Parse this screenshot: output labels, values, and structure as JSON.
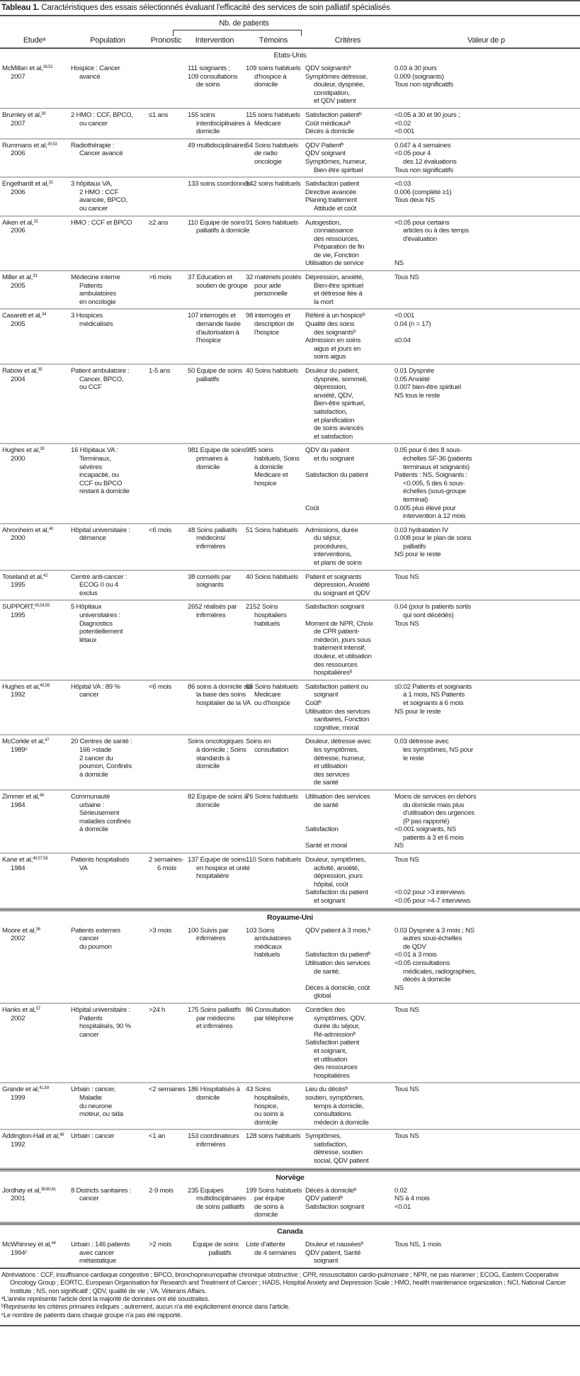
{
  "title": {
    "label": "Tableau 1.",
    "text": "Caractéristiques des essais sélectionnés évaluant l'efficacité des services de soin palliatif spécialisés"
  },
  "header": {
    "group": "Nb. de patients",
    "columns": [
      "Etudeᵃ",
      "Population",
      "Pronostic",
      "Intervention",
      "Témoins",
      "Critères",
      "Valeur de p"
    ]
  },
  "sections": [
    {
      "name": "Etats-Unis",
      "rows": [
        {
          "study": "McMillan et al,",
          "refs": "28,52",
          "year": "2007",
          "population": [
            "Hospice : Cancer\navancé"
          ],
          "pronostic": [
            ""
          ],
          "intervention": [
            "111 soignants ;",
            "109 consultations\nde soins"
          ],
          "temoins": [
            "109 soins habituels\nd'hospice à\ndomicile"
          ],
          "criteres": [
            "QDV soignantsᵇ",
            "Symptômes détresse,\ndouleur, dyspnée,\nconstipation,\net QDV patient"
          ],
          "p": [
            "0.03 à 30 jours",
            "0.009 (soignants)",
            "Tous non significatifs"
          ]
        },
        {
          "study": "Brumley et al,",
          "refs": "29",
          "year": "2007",
          "population": [
            "2 HMO : CCF, BPCO,\nou cancer"
          ],
          "pronostic": [
            "≤1 ans"
          ],
          "intervention": [
            "155 soins\ninterdisciplinaires à\ndomicile"
          ],
          "temoins": [
            "115 soins habituels\nMedicare"
          ],
          "criteres": [
            "Satisfaction patientᵇ",
            "Coût médicauxᵇ",
            "Décès à domicile"
          ],
          "p": [
            "<0.05 à 30 et 90 jours ;",
            "<0.02",
            "<0.001"
          ]
        },
        {
          "study": "Rummans et al,",
          "refs": "30,53",
          "year": "2006",
          "population": [
            "Radiothérapie :\nCancer avancé"
          ],
          "pronostic": [
            ""
          ],
          "intervention": [
            "49 multidisciplinaires"
          ],
          "temoins": [
            "54 Soins habituels\nde radio\noncologie"
          ],
          "criteres": [
            "QDV Patientᵇ",
            "QDV soignant",
            "Symptômes, humeur,\nBien être spirituel"
          ],
          "p": [
            "0.047 à 4 semaines",
            "<0.05 pour 4\ndes 12 évaluations",
            "Tous non significatifs"
          ]
        },
        {
          "study": "Engelhardt et al,",
          "refs": "31",
          "year": "2006",
          "population": [
            "3 hôpitaux VA,\n2 HMO : CCF\navancée, BPCO,\nou cancer"
          ],
          "pronostic": [
            ""
          ],
          "intervention": [
            "133 soins coordonnés"
          ],
          "temoins": [
            "142 soins habituels"
          ],
          "criteres": [
            "Satisfaction patient",
            "Directive avancée",
            "Planing traitement\nAttitude et coût"
          ],
          "p": [
            "<0.03",
            "0.006 (complété ≥1)",
            "Tous deux NS"
          ]
        },
        {
          "study": "Aiken et al,",
          "refs": "32",
          "year": "2006",
          "population": [
            "HMO : CCF et BPCO"
          ],
          "pronostic": [
            "≥2 ans"
          ],
          "intervention": [
            "110 Equipe de soins\npalliatifs à domicile"
          ],
          "temoins": [
            "91 Soins habituels"
          ],
          "criteres": [
            "Autogestion,\nconnaissance\ndes ressources,\nPréparation de fin\nde vie, Fonction",
            "Utilisation de service"
          ],
          "p": [
            "<0.05 pour certains\narticles ou à des temps\nd'évaluation",
            "",
            "",
            "NS"
          ]
        },
        {
          "study": "Miller et al,",
          "refs": "33",
          "year": "2005",
          "population": [
            "Médecine interne\nPatients\nambulatoires\nen oncologie"
          ],
          "pronostic": [
            ">6 mois"
          ],
          "intervention": [
            "37 Education et\nsoutien de groupe"
          ],
          "temoins": [
            "32 matériels postés\npour aide\npersonnelle"
          ],
          "criteres": [
            "Dépression, anxiété,\nBien-être spirituel\net détresse liée à\nla mort"
          ],
          "p": [
            "Tous NS"
          ]
        },
        {
          "study": "Casarett et al,",
          "refs": "34",
          "year": "2005",
          "population": [
            "3 Hospices\nmédicalisés"
          ],
          "pronostic": [
            ""
          ],
          "intervention": [
            "107 interrogés et\ndemande faxée\nd'autorisation à\nl'hospice"
          ],
          "temoins": [
            "98 interrogés et\ndescription de\nl'hospice"
          ],
          "criteres": [
            "Référé à un hospiceᵇ",
            "Qualité des soins\ndes soignantsᵇ",
            "Admission en soins\naigus et jours en\nsoins aigus"
          ],
          "p": [
            "<0.001",
            "0.04 (n = 17)",
            "",
            "≤0.04"
          ]
        },
        {
          "study": "Rabow et al,",
          "refs": "35",
          "year": "2004",
          "population": [
            "Patient ambulatoire :\nCancer, BPCO,\nou CCF"
          ],
          "pronostic": [
            "1-5 ans"
          ],
          "intervention": [
            "50 Equipe de soins\npalliatifs"
          ],
          "temoins": [
            "40 Soins habituels"
          ],
          "criteres": [
            "Douleur du patient,\ndyspnée, sommeil,\ndépression,\nanxiété, QDV,\nBien-être spirituel,\nsatisfaction,\net planification\nde soins avancés\net satisfaction"
          ],
          "p": [
            "0.01 Dyspnée",
            "0.05 Anxiété",
            "0.007 bien-être spirituel",
            "NS tous le reste"
          ]
        },
        {
          "study": "Hughes et al,",
          "refs": "39",
          "year": "2000",
          "population": [
            "16 Hôpitaux VA :\nTerminaux,\nsévères\nincapactié, ou\nCCF ou BPCO\nrestant à domicile"
          ],
          "pronostic": [
            ""
          ],
          "intervention": [
            "981 Equipe de soins\nprimaires à\ndomicile"
          ],
          "temoins": [
            "985 soins\nhabituels, Soins\nà domicile\nMedicare et\nhospice"
          ],
          "criteres": [
            "QDV du patient\net du soignant",
            "",
            "Satisfaction du patient",
            "",
            "",
            "",
            "Coût"
          ],
          "p": [
            "0.05 pour 6 des 8 sous-\néchelles SF-36 (patients\nterminaux et soignants)",
            "Patients : NS, Soignants :\n<0.005, 5 des 6 sous-\néchelles (sous-groupe\nterminal)",
            "0.005 plus élevé pour\nintervention à 12 mois"
          ]
        },
        {
          "study": "Ahronheim et al,",
          "refs": "40",
          "year": "2000",
          "population": [
            "Hôpital universitaire :\ndémence"
          ],
          "pronostic": [
            "<6 mois"
          ],
          "intervention": [
            "48 Soins palliatifs\nmédecins/\ninfirmières"
          ],
          "temoins": [
            "51 Soins habituels"
          ],
          "criteres": [
            "Admissions, durée\ndu séjour,\nprocédures,\ninterventions,\net plans de soins"
          ],
          "p": [
            "0.03 hydratation IV",
            "0.008 pour le plan de soins\npalliatifs",
            "NS pour le reste"
          ]
        },
        {
          "study": "Toseland et al,",
          "refs": "42",
          "year": "1995",
          "population": [
            "Centre anti-cancer :\nECOG 0 ou 4\nexclus"
          ],
          "pronostic": [
            ""
          ],
          "intervention": [
            "38 conseils par\nsoignants"
          ],
          "temoins": [
            "40 Soins habituels"
          ],
          "criteres": [
            "Patient et soignants\ndépression, Anxiété\ndu soignant et QDV"
          ],
          "p": [
            "Tous NS"
          ]
        },
        {
          "study": "SUPPORT,",
          "refs": "43,54,55",
          "year": "1995",
          "population": [
            "5 Hôpitaux\nuniversitaires :\nDiagnostics\npotentiellement\nlétaux"
          ],
          "pronostic": [
            ""
          ],
          "intervention": [
            "2652 réalisés par\ninfirmières"
          ],
          "temoins": [
            "2152 Soins\nhospitaliers\nhabituels"
          ],
          "criteres": [
            "Satisfaction soignant",
            "",
            "Moment de NPR, Choix\nde CPR patient-\nmédecin, jours sous\ntraitement intensif,\ndouleur, et utilisation\ndes ressources\nhospitalièresᵇ"
          ],
          "p": [
            "0.04 (pour ls patients sortis\nqui sont décédés)",
            "Tous NS"
          ]
        },
        {
          "study": "Hughes et al,",
          "refs": "45,56",
          "year": "1992",
          "population": [
            "Hôpital VA : 89 %\ncancer"
          ],
          "pronostic": [
            "<6 mois"
          ],
          "intervention": [
            "86 soins à domicile sur\nla base des soins\nhospitalier de la VA"
          ],
          "temoins": [
            "85 Soins habituels\nMedicare\nou d'hospice"
          ],
          "criteres": [
            "Satisfaction patient ou\nsoignant",
            "Coûtᵇ",
            "Utilisation des services\nsanitaires, Fonction\ncognitive, moral"
          ],
          "p": [
            "≤0.02 Patients et soignants\nà 1 mois, NS Patients\net soignants à 6 mois",
            "NS pour le reste"
          ]
        },
        {
          "study": "McCorkle et al,",
          "refs": "47",
          "year": "1989ᶜ",
          "population": [
            "20 Centres de santé :\n166 >stade\n2 cancer du\npoumon, Confinés\nà domicile"
          ],
          "pronostic": [
            ""
          ],
          "intervention": [
            "Soins oncologiques\nà domicile ; Soins\nstandards à\ndomicile"
          ],
          "temoins": [
            "Soins en\nconsultation"
          ],
          "criteres": [
            "Douleur, détresse avec\nles symptômes,\ndétresse, humeur,\net utilisation\ndes services\nde santé"
          ],
          "p": [
            "0.03 détresse avec\nles symptômes, NS pour\nle reste"
          ]
        },
        {
          "study": "Zimmer et al,",
          "refs": "48",
          "year": "1984",
          "population": [
            "Communauté\nurbaine :\nSérieusement\nmaladies confinés\nà domicile"
          ],
          "pronostic": [
            ""
          ],
          "intervention": [
            "82 Equipe de soins à\ndomicile"
          ],
          "temoins": [
            "76 Soins habituels"
          ],
          "criteres": [
            "Utilisation des services\nde santé",
            "",
            "",
            "Satisfaction",
            "",
            "Santé et moral"
          ],
          "p": [
            "Moins de services en dehors\ndu domicile mais plus\nd'utilisation des urgences\n(P pas rapporté)",
            "<0.001 soignants, NS\npatients à 3 et 6 mois",
            "NS"
          ]
        },
        {
          "study": "Kane et al,",
          "refs": "49,57,58",
          "year": "1984",
          "population": [
            "Patients hospitalisés\nVA"
          ],
          "pronostic": [
            "2 semaines-\n6 mois"
          ],
          "intervention": [
            "137 Equipe de soins\nen hospice et unité\nhospitalière"
          ],
          "temoins": [
            "110 Soins habituels"
          ],
          "criteres": [
            "Douleur, symptômes,\nactivité, anxiété,\ndépression, jours\nhôpital, coût",
            "Satisfaction du patient\net soignant"
          ],
          "p": [
            "Tous NS",
            "",
            "",
            "",
            "<0.02 pour >3 interviews",
            "<0.05 pour >4-7 interviews"
          ]
        }
      ]
    },
    {
      "name": "Royaume-Uni",
      "rows": [
        {
          "study": "Moore et al,",
          "refs": "36",
          "year": "2002",
          "population": [
            "Patients externes\ncancer\ndu poumon"
          ],
          "pronostic": [
            ">3 mois"
          ],
          "intervention": [
            "100 Suivis par\ninfirmières"
          ],
          "temoins": [
            "103 Soins\nambulatoires\nmédicaux\nhabituels"
          ],
          "criteres": [
            "QDV patient à 3 mois,ᵇ",
            "",
            "",
            "Satisfaction du patientᵇ",
            "Utilisation des services\nde santé,",
            "",
            "Décès à domicile, coût\nglobal"
          ],
          "p": [
            "0.03 Dyspnée à 3 mois ; NS\nautres sous-échelles\nde QDV",
            "<0.01 à 3 mois",
            "<0.05 consultations\nmédicales, radiographies,\ndécès à domicile",
            "NS"
          ]
        },
        {
          "study": "Hanks et al,",
          "refs": "37",
          "year": "2002",
          "population": [
            "Hôpital universitaire :\nPatients\nhospitalisés, 90 %\ncancer"
          ],
          "pronostic": [
            ">24 h"
          ],
          "intervention": [
            "175 Soins palliatifs\npar médecins\net infirmières"
          ],
          "temoins": [
            "86 Consultation\npar téléphone"
          ],
          "criteres": [
            "Contrôles des\nsymptômes, QDV,\ndurée du séjour,\nRé-admissionᵇ",
            "Satisfaction patient\net soignant,\net utilisation\ndes ressources\nhospitalières"
          ],
          "p": [
            "Tous NS"
          ]
        },
        {
          "study": "Grande et al,",
          "refs": "41,59",
          "year": "1999",
          "population": [
            "Urbain : cancer,\nMaladie\ndu neurone\nmoteur, ou sida"
          ],
          "pronostic": [
            "<2 semaines"
          ],
          "intervention": [
            "186 Hospitalisés à\ndomicile"
          ],
          "temoins": [
            "43 Soins\nhospitalisés,\nhospice,\nou soins à\ndomicile"
          ],
          "criteres": [
            "Lieu du décèsᵇ",
            "soutien, symptômes,\ntemps à domicile,\nconsultations\nmédecin à domicile"
          ],
          "p": [
            "Tous NS"
          ]
        },
        {
          "study": "Addington-Hall et al,",
          "refs": "46",
          "year": "1992",
          "population": [
            "Urbain : cancer"
          ],
          "pronostic": [
            "<1 an"
          ],
          "intervention": [
            "153 coordinateurs\ninfirmières"
          ],
          "temoins": [
            "128 soins habituels"
          ],
          "criteres": [
            "Symptômes,\nsatisfaction,\ndétresse, soutien\nsocial, QDV patient"
          ],
          "p": [
            "Tous NS"
          ]
        }
      ]
    },
    {
      "name": "Norvège",
      "rows": [
        {
          "study": "Jordhøy et al,",
          "refs": "38,60,61",
          "year": "2001",
          "population": [
            "8 Districts sanitaires :\ncancer"
          ],
          "pronostic": [
            "2-9 mois"
          ],
          "intervention": [
            "235 Equipes\nmultidisciplinaires\nde soins palliatifs"
          ],
          "temoins": [
            "199 Soins habituels\npar équipe\nde soins à\ndomicile"
          ],
          "criteres": [
            "Décès à domicileᵇ",
            "QDV patientᵇ",
            "Satisfaction soignant"
          ],
          "p": [
            "0.02",
            "NS à 4 mois",
            "<0.01"
          ]
        }
      ]
    },
    {
      "name": "Canada",
      "rows": [
        {
          "study": "McWhinney et al,",
          "refs": "44",
          "year": "1994ᶜ",
          "population": [
            "Urbain : 146 patients\navec cancer\nmétastatique"
          ],
          "pronostic": [
            ">2 mois"
          ],
          "intervention": [
            "Equipe de soins\npalliatifs"
          ],
          "temoins": [
            "Liste d'attente\nde 4 semaines"
          ],
          "criteres": [
            "Douleur et nauséesᵇ",
            "QDV patient, Santé\nsoignant"
          ],
          "p": [
            "Tous NS, 1 mois"
          ]
        }
      ]
    }
  ],
  "footnotes": {
    "abbreviations": "Abréviations : CCF, insuffisance cardiaque congestive ; BPCO, bronchopneumopathie chronique obstructive ; CPR, ressuscitation cardio-pulmonaire ; NPR, ne pas réanimer ; ECOG, Eastern Cooperative Oncology Group ; EORTC, European Organisation for Research and Treatment of Cancer ; HADS, Hospital Anxiety and Depression Scale ; HMO, health maintenance organization ; NCI, National Cancer Institute ; NS, non significatif ; QDV, qualité de vie ; VA, Veterans Affairs.",
    "notes": [
      "ᵃL'année représente l'article dont la majorité de données ont été soustraites.",
      "ᵇReprésente les critères primaires indiqués ; autrement, aucun n'a été explicitement énoncé dans l'article.",
      "ᶜLe nombre de patients dans chaque groupe n'a pas été rapporté."
    ]
  }
}
